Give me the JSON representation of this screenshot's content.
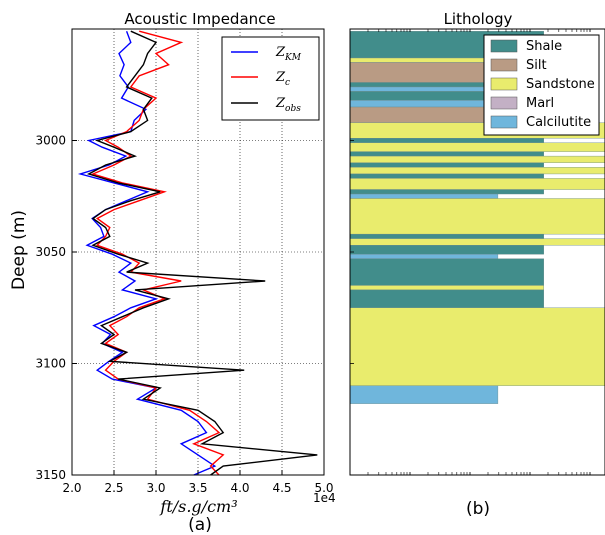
{
  "chart_data": [
    {
      "type": "line",
      "title": "Acoustic Impedance",
      "xlabel": "ft/s.g/cm³",
      "ylabel": "Deep (m)",
      "subcaption": "(a)",
      "x_offset_label": "1e4",
      "xlim": [
        20000,
        50000
      ],
      "ylim": [
        3150,
        2950
      ],
      "y_inverted": true,
      "grid": true,
      "legend_position": "top-right",
      "xticks": [
        "2.0",
        "2.5",
        "3.0",
        "3.5",
        "4.0",
        "4.5",
        "5.0"
      ],
      "yticks": [
        "3000",
        "3050",
        "3100",
        "3150"
      ],
      "series": [
        {
          "name": "Z_KM",
          "color": "#0000ff",
          "points": [
            [
              2951,
              26500
            ],
            [
              2956,
              27000
            ],
            [
              2961,
              25600
            ],
            [
              2966,
              26200
            ],
            [
              2971,
              25700
            ],
            [
              2976,
              26700
            ],
            [
              2981,
              25900
            ],
            [
              2986,
              28800
            ],
            [
              2991,
              27400
            ],
            [
              2996,
              27000
            ],
            [
              3000,
              22000
            ],
            [
              3003,
              23600
            ],
            [
              3007,
              26400
            ],
            [
              3011,
              24400
            ],
            [
              3015,
              21000
            ],
            [
              3019,
              25000
            ],
            [
              3023,
              29000
            ],
            [
              3027,
              26500
            ],
            [
              3031,
              24000
            ],
            [
              3035,
              22400
            ],
            [
              3039,
              23400
            ],
            [
              3043,
              23800
            ],
            [
              3047,
              21800
            ],
            [
              3051,
              24800
            ],
            [
              3055,
              27000
            ],
            [
              3059,
              25600
            ],
            [
              3063,
              27500
            ],
            [
              3067,
              26000
            ],
            [
              3071,
              30000
            ],
            [
              3075,
              27000
            ],
            [
              3079,
              25000
            ],
            [
              3083,
              22600
            ],
            [
              3087,
              24600
            ],
            [
              3091,
              23600
            ],
            [
              3095,
              26000
            ],
            [
              3099,
              24400
            ],
            [
              3103,
              23000
            ],
            [
              3107,
              24800
            ],
            [
              3111,
              30000
            ],
            [
              3116,
              27800
            ],
            [
              3121,
              33000
            ],
            [
              3126,
              35000
            ],
            [
              3131,
              36000
            ],
            [
              3136,
              33000
            ],
            [
              3141,
              35000
            ],
            [
              3146,
              37000
            ],
            [
              3150,
              34500
            ]
          ]
        },
        {
          "name": "Z_c",
          "color": "#ff0000",
          "points": [
            [
              2951,
              28000
            ],
            [
              2956,
              33000
            ],
            [
              2961,
              30000
            ],
            [
              2966,
              31500
            ],
            [
              2971,
              28000
            ],
            [
              2976,
              27000
            ],
            [
              2981,
              30000
            ],
            [
              2986,
              28500
            ],
            [
              2991,
              28000
            ],
            [
              2996,
              26500
            ],
            [
              3000,
              24000
            ],
            [
              3003,
              25500
            ],
            [
              3007,
              27000
            ],
            [
              3011,
              25000
            ],
            [
              3015,
              22500
            ],
            [
              3019,
              26000
            ],
            [
              3023,
              31000
            ],
            [
              3027,
              28000
            ],
            [
              3031,
              25000
            ],
            [
              3035,
              23000
            ],
            [
              3039,
              24500
            ],
            [
              3043,
              24000
            ],
            [
              3047,
              23000
            ],
            [
              3051,
              26000
            ],
            [
              3055,
              28000
            ],
            [
              3059,
              27000
            ],
            [
              3063,
              33000
            ],
            [
              3067,
              28500
            ],
            [
              3071,
              31000
            ],
            [
              3075,
              28000
            ],
            [
              3079,
              26500
            ],
            [
              3083,
              24500
            ],
            [
              3087,
              25500
            ],
            [
              3091,
              24000
            ],
            [
              3095,
              26500
            ],
            [
              3099,
              25000
            ],
            [
              3103,
              24000
            ],
            [
              3107,
              25500
            ],
            [
              3111,
              30000
            ],
            [
              3116,
              29000
            ],
            [
              3121,
              34000
            ],
            [
              3126,
              36000
            ],
            [
              3131,
              37500
            ],
            [
              3136,
              34500
            ],
            [
              3141,
              38000
            ],
            [
              3146,
              36500
            ],
            [
              3150,
              37500
            ]
          ]
        },
        {
          "name": "Z_obs",
          "color": "#000000",
          "points": [
            [
              2951,
              27000
            ],
            [
              2956,
              30000
            ],
            [
              2961,
              29000
            ],
            [
              2966,
              28500
            ],
            [
              2971,
              27500
            ],
            [
              2976,
              26500
            ],
            [
              2981,
              29500
            ],
            [
              2986,
              28500
            ],
            [
              2991,
              29000
            ],
            [
              2996,
              27000
            ],
            [
              3000,
              23000
            ],
            [
              3003,
              25000
            ],
            [
              3007,
              27500
            ],
            [
              3011,
              24000
            ],
            [
              3015,
              22000
            ],
            [
              3019,
              25500
            ],
            [
              3023,
              30500
            ],
            [
              3027,
              27000
            ],
            [
              3031,
              24000
            ],
            [
              3035,
              22500
            ],
            [
              3039,
              24000
            ],
            [
              3043,
              24500
            ],
            [
              3047,
              22500
            ],
            [
              3051,
              25500
            ],
            [
              3055,
              29000
            ],
            [
              3059,
              26500
            ],
            [
              3063,
              43000
            ],
            [
              3067,
              27500
            ],
            [
              3071,
              31500
            ],
            [
              3075,
              28500
            ],
            [
              3079,
              26000
            ],
            [
              3083,
              23500
            ],
            [
              3087,
              25000
            ],
            [
              3091,
              23500
            ],
            [
              3095,
              26500
            ],
            [
              3099,
              24500
            ],
            [
              3103,
              40500
            ],
            [
              3107,
              25500
            ],
            [
              3111,
              30500
            ],
            [
              3116,
              28500
            ],
            [
              3121,
              35000
            ],
            [
              3126,
              37000
            ],
            [
              3131,
              38000
            ],
            [
              3136,
              35500
            ],
            [
              3141,
              49200
            ],
            [
              3146,
              38000
            ],
            [
              3150,
              36500
            ]
          ]
        }
      ]
    },
    {
      "type": "bar",
      "title": "Lithology",
      "subcaption": "(b)",
      "orientation": "horizontal",
      "ylim": [
        3150,
        2950
      ],
      "legend_position": "top-right",
      "categories": [
        "Shale",
        "Silt",
        "Sandstone",
        "Marl",
        "Calcilutite"
      ],
      "colors": {
        "Shale": "#418d8b",
        "Silt": "#b99b84",
        "Sandstone": "#e9ec6d",
        "Marl": "#c3b0c5",
        "Calcilutite": "#6fb6dc"
      },
      "intervals": [
        {
          "from": 2951,
          "to": 2963,
          "lith": "Shale",
          "extent": 0.76
        },
        {
          "from": 2963,
          "to": 2965,
          "lith": "Sandstone",
          "extent": 0.76
        },
        {
          "from": 2965,
          "to": 2974,
          "lith": "Silt",
          "extent": 0.76
        },
        {
          "from": 2974,
          "to": 2976,
          "lith": "Shale",
          "extent": 0.76
        },
        {
          "from": 2976,
          "to": 2978,
          "lith": "Calcilutite",
          "extent": 0.76
        },
        {
          "from": 2978,
          "to": 2982,
          "lith": "Shale",
          "extent": 0.76
        },
        {
          "from": 2982,
          "to": 2985,
          "lith": "Calcilutite",
          "extent": 0.76
        },
        {
          "from": 2985,
          "to": 2992,
          "lith": "Silt",
          "extent": 0.76
        },
        {
          "from": 2992,
          "to": 2999,
          "lith": "Sandstone",
          "extent": 1.0
        },
        {
          "from": 2999,
          "to": 3001,
          "lith": "Shale",
          "extent": 0.76
        },
        {
          "from": 3001,
          "to": 3005,
          "lith": "Sandstone",
          "extent": 1.0
        },
        {
          "from": 3005,
          "to": 3007,
          "lith": "Shale",
          "extent": 0.76
        },
        {
          "from": 3007,
          "to": 3010,
          "lith": "Sandstone",
          "extent": 1.0
        },
        {
          "from": 3010,
          "to": 3012,
          "lith": "Shale",
          "extent": 0.76
        },
        {
          "from": 3012,
          "to": 3015,
          "lith": "Sandstone",
          "extent": 1.0
        },
        {
          "from": 3015,
          "to": 3017,
          "lith": "Shale",
          "extent": 0.76
        },
        {
          "from": 3017,
          "to": 3022,
          "lith": "Sandstone",
          "extent": 1.0
        },
        {
          "from": 3022,
          "to": 3024,
          "lith": "Shale",
          "extent": 0.76
        },
        {
          "from": 3024,
          "to": 3026,
          "lith": "Calcilutite",
          "extent": 0.58
        },
        {
          "from": 3026,
          "to": 3042,
          "lith": "Sandstone",
          "extent": 1.0
        },
        {
          "from": 3042,
          "to": 3044,
          "lith": "Shale",
          "extent": 0.76
        },
        {
          "from": 3044,
          "to": 3047,
          "lith": "Sandstone",
          "extent": 1.0
        },
        {
          "from": 3047,
          "to": 3051,
          "lith": "Shale",
          "extent": 0.76
        },
        {
          "from": 3051,
          "to": 3053,
          "lith": "Calcilutite",
          "extent": 0.58
        },
        {
          "from": 3053,
          "to": 3065,
          "lith": "Shale",
          "extent": 0.76
        },
        {
          "from": 3065,
          "to": 3067,
          "lith": "Sandstone",
          "extent": 0.76
        },
        {
          "from": 3067,
          "to": 3075,
          "lith": "Shale",
          "extent": 0.76
        },
        {
          "from": 3075,
          "to": 3110,
          "lith": "Sandstone",
          "extent": 1.0
        },
        {
          "from": 3110,
          "to": 3118,
          "lith": "Calcilutite",
          "extent": 0.58
        }
      ]
    }
  ]
}
